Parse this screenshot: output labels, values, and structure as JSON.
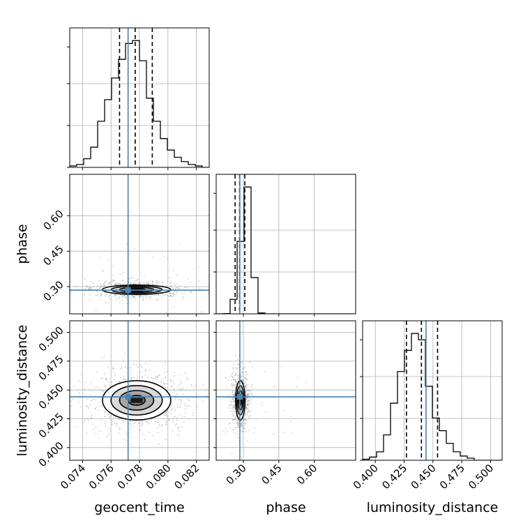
{
  "chart_data": {
    "type": "corner",
    "parameters": [
      "geocent_time",
      "phase",
      "luminosity_distance"
    ],
    "axis_labels": [
      "geocent_time",
      "phase",
      "luminosity_distance"
    ],
    "grid": true,
    "colors": {
      "truth": "#4682b4",
      "hist": "#000000",
      "quantile": "#000000",
      "density": "#000000"
    },
    "ranges": {
      "geocent_time": [
        0.0731,
        0.0829
      ],
      "phase": [
        0.185,
        0.775
      ],
      "luminosity_distance": [
        0.389,
        0.51
      ]
    },
    "ticks": {
      "geocent_time": {
        "values": [
          0.074,
          0.076,
          0.078,
          0.08,
          0.082
        ],
        "labels": [
          "0.074",
          "0.076",
          "0.078",
          "0.080",
          "0.082"
        ]
      },
      "phase": {
        "values": [
          0.3,
          0.45,
          0.6
        ],
        "labels": [
          "0.30",
          "0.45",
          "0.60"
        ]
      },
      "luminosity_distance": {
        "values": [
          0.4,
          0.425,
          0.45,
          0.475,
          0.5
        ],
        "labels": [
          "0.400",
          "0.425",
          "0.450",
          "0.475",
          "0.500"
        ]
      }
    },
    "truths": {
      "geocent_time": 0.0772,
      "phase": 0.285,
      "luminosity_distance": 0.444
    },
    "quantiles": {
      "geocent_time": [
        0.0766,
        0.0777,
        0.0789
      ],
      "phase": [
        0.265,
        0.284,
        0.306
      ],
      "luminosity_distance": [
        0.427,
        0.44,
        0.454
      ]
    },
    "histograms": {
      "geocent_time": {
        "bin_edges": [
          0.0731,
          0.07359,
          0.07408,
          0.07457,
          0.07506,
          0.07555,
          0.07604,
          0.07653,
          0.07702,
          0.07751,
          0.078,
          0.07849,
          0.07898,
          0.07947,
          0.07996,
          0.08045,
          0.08094,
          0.08143,
          0.08192,
          0.08241,
          0.0829
        ],
        "counts": [
          1,
          2,
          6,
          14,
          32,
          47,
          62,
          75,
          86,
          88,
          74,
          48,
          32,
          20,
          12,
          7,
          4,
          2,
          1,
          0
        ]
      },
      "phase": {
        "bin_edges": [
          0.185,
          0.2145,
          0.244,
          0.2735,
          0.303,
          0.3325,
          0.362,
          0.3915,
          0.421,
          0.4505,
          0.48,
          0.5095,
          0.539,
          0.5685,
          0.598,
          0.6275,
          0.657,
          0.6865,
          0.716,
          0.7455,
          0.775
        ],
        "counts": [
          0,
          0.2,
          12,
          60,
          105,
          30,
          0.7,
          0,
          0,
          0,
          0,
          0,
          0,
          0,
          0,
          0,
          0,
          0,
          0,
          0
        ]
      },
      "luminosity_distance": {
        "bin_edges": [
          0.389,
          0.39505,
          0.4011,
          0.40715,
          0.4132,
          0.41925,
          0.4253,
          0.43135,
          0.4374,
          0.44345,
          0.4495,
          0.45555,
          0.4616,
          0.46765,
          0.4737,
          0.47975,
          0.4858,
          0.49185,
          0.4979,
          0.50395,
          0.51
        ],
        "counts": [
          0.5,
          1.5,
          4,
          12,
          27,
          42,
          52,
          60,
          57,
          35,
          20,
          14,
          8,
          4,
          2,
          1,
          0,
          0,
          0,
          0
        ]
      }
    },
    "pairs": [
      {
        "x": "geocent_time",
        "y": "phase",
        "center": [
          0.0778,
          0.287
        ],
        "sd": [
          0.0012,
          0.01
        ],
        "scatter_spread": [
          0.0016,
          0.018
        ],
        "outlier_spread": [
          0.003,
          0.2
        ],
        "contour_levels": [
          0.5,
          1.0,
          1.5,
          2.0
        ]
      },
      {
        "x": "geocent_time",
        "y": "luminosity_distance",
        "center": [
          0.0778,
          0.441
        ],
        "sd": [
          0.0012,
          0.0085
        ],
        "scatter_spread": [
          0.0018,
          0.013
        ],
        "outlier_spread": [
          0.003,
          0.03
        ],
        "contour_levels": [
          0.5,
          1.0,
          1.5,
          2.0
        ]
      },
      {
        "x": "phase",
        "y": "luminosity_distance",
        "center": [
          0.287,
          0.441
        ],
        "sd": [
          0.01,
          0.0085
        ],
        "scatter_spread": [
          0.018,
          0.013
        ],
        "outlier_spread": [
          0.2,
          0.03
        ],
        "contour_levels": [
          0.5,
          1.0,
          1.5,
          2.0
        ]
      }
    ]
  }
}
